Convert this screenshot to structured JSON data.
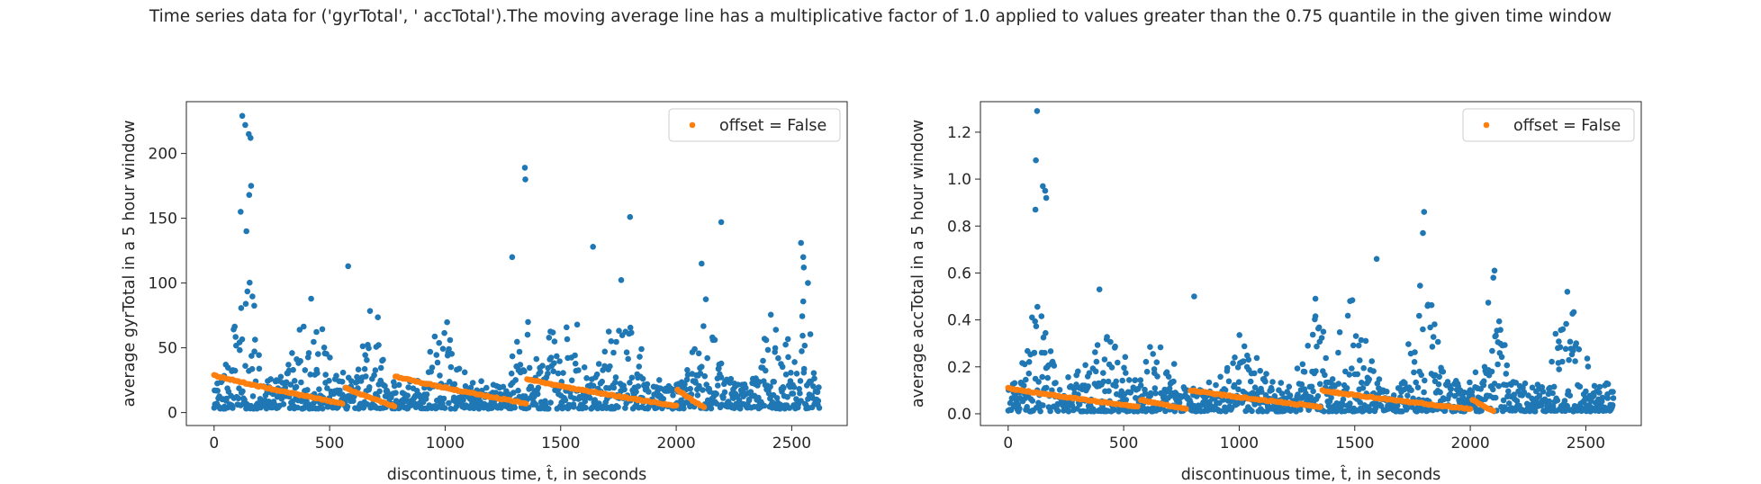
{
  "figure": {
    "suptitle": "Time series data for ('gyrTotal', ' accTotal').The moving average line has a multiplicative factor of 1.0 applied to values greater than the 0.75 quantile in the given time window"
  },
  "colors": {
    "raw_points": "#1f77b4",
    "moving_average": "#ff7f0e",
    "axes": "#262626",
    "background": "#ffffff"
  },
  "chart_data": [
    {
      "type": "scatter",
      "xlabel": "discontinuous time, t̂, in seconds",
      "ylabel": "average gyrTotal in a 5 hour window",
      "xlim": [
        -120,
        2740
      ],
      "ylim": [
        -10,
        240
      ],
      "xticks": [
        0,
        500,
        1000,
        1500,
        2000,
        2500
      ],
      "yticks": [
        0,
        50,
        100,
        150,
        200
      ],
      "legend": {
        "label": "offset = False",
        "placement": "upper right"
      },
      "grid": false,
      "series": [
        {
          "role": "raw",
          "x_range": [
            0,
            2620
          ],
          "n_points": 1150,
          "baseline": 3,
          "low_spread": 22,
          "bursts": [
            {
              "center": 130,
              "width": 70,
              "height": 95
            },
            {
              "center": 430,
              "width": 110,
              "height": 70
            },
            {
              "center": 680,
              "width": 60,
              "height": 70
            },
            {
              "center": 1000,
              "width": 90,
              "height": 50
            },
            {
              "center": 1340,
              "width": 60,
              "height": 70
            },
            {
              "center": 1500,
              "width": 100,
              "height": 75
            },
            {
              "center": 1760,
              "width": 90,
              "height": 80
            },
            {
              "center": 2130,
              "width": 60,
              "height": 80
            },
            {
              "center": 2430,
              "width": 80,
              "height": 60
            },
            {
              "center": 2560,
              "width": 40,
              "height": 75
            }
          ],
          "highlights": [
            {
              "x": 122,
              "y": 229
            },
            {
              "x": 135,
              "y": 222
            },
            {
              "x": 150,
              "y": 215
            },
            {
              "x": 158,
              "y": 212
            },
            {
              "x": 160,
              "y": 175
            },
            {
              "x": 152,
              "y": 168
            },
            {
              "x": 115,
              "y": 155
            },
            {
              "x": 140,
              "y": 140
            },
            {
              "x": 1345,
              "y": 189
            },
            {
              "x": 1347,
              "y": 180
            },
            {
              "x": 1800,
              "y": 151
            },
            {
              "x": 2195,
              "y": 147
            },
            {
              "x": 2540,
              "y": 131
            },
            {
              "x": 2550,
              "y": 120
            },
            {
              "x": 2552,
              "y": 112
            },
            {
              "x": 1290,
              "y": 120
            },
            {
              "x": 1640,
              "y": 128
            },
            {
              "x": 580,
              "y": 113
            },
            {
              "x": 2570,
              "y": 100
            },
            {
              "x": 2110,
              "y": 115
            }
          ]
        },
        {
          "role": "moving_average",
          "name": "offset = False",
          "segments": [
            {
              "x0": 0,
              "x1": 555,
              "y0": 29,
              "y1": 7
            },
            {
              "x0": 570,
              "x1": 780,
              "y0": 19,
              "y1": 5
            },
            {
              "x0": 785,
              "x1": 1350,
              "y0": 28,
              "y1": 7
            },
            {
              "x0": 1355,
              "x1": 2000,
              "y0": 26,
              "y1": 5
            },
            {
              "x0": 2005,
              "x1": 2120,
              "y0": 18,
              "y1": 4
            }
          ]
        }
      ]
    },
    {
      "type": "scatter",
      "xlabel": "discontinuous time, t̂, in seconds",
      "ylabel": "average  accTotal in a 5 hour window",
      "xlim": [
        -120,
        2740
      ],
      "ylim": [
        -0.05,
        1.33
      ],
      "xticks": [
        0,
        500,
        1000,
        1500,
        2000,
        2500
      ],
      "yticks": [
        0.0,
        0.2,
        0.4,
        0.6,
        0.8,
        1.0,
        1.2
      ],
      "legend": {
        "label": "offset = False",
        "placement": "upper right"
      },
      "grid": false,
      "series": [
        {
          "role": "raw",
          "x_range": [
            0,
            2620
          ],
          "n_points": 1150,
          "baseline": 0.01,
          "low_spread": 0.12,
          "bursts": [
            {
              "center": 130,
              "width": 60,
              "height": 0.5
            },
            {
              "center": 420,
              "width": 110,
              "height": 0.3
            },
            {
              "center": 650,
              "width": 70,
              "height": 0.3
            },
            {
              "center": 1000,
              "width": 100,
              "height": 0.25
            },
            {
              "center": 1330,
              "width": 60,
              "height": 0.4
            },
            {
              "center": 1500,
              "width": 100,
              "height": 0.4
            },
            {
              "center": 1800,
              "width": 80,
              "height": 0.5
            },
            {
              "center": 2100,
              "width": 60,
              "height": 0.45
            },
            {
              "center": 2430,
              "width": 80,
              "height": 0.4
            }
          ],
          "highlights": [
            {
              "x": 125,
              "y": 1.29
            },
            {
              "x": 120,
              "y": 1.08
            },
            {
              "x": 150,
              "y": 0.97
            },
            {
              "x": 160,
              "y": 0.95
            },
            {
              "x": 165,
              "y": 0.92
            },
            {
              "x": 118,
              "y": 0.87
            },
            {
              "x": 1800,
              "y": 0.86
            },
            {
              "x": 1795,
              "y": 0.77
            },
            {
              "x": 1595,
              "y": 0.66
            },
            {
              "x": 2105,
              "y": 0.61
            },
            {
              "x": 2100,
              "y": 0.58
            },
            {
              "x": 2420,
              "y": 0.52
            },
            {
              "x": 395,
              "y": 0.53
            },
            {
              "x": 1330,
              "y": 0.49
            },
            {
              "x": 805,
              "y": 0.5
            },
            {
              "x": 1480,
              "y": 0.48
            }
          ]
        },
        {
          "role": "moving_average",
          "name": "offset = False",
          "segments": [
            {
              "x0": 0,
              "x1": 560,
              "y0": 0.11,
              "y1": 0.03
            },
            {
              "x0": 575,
              "x1": 770,
              "y0": 0.06,
              "y1": 0.02
            },
            {
              "x0": 790,
              "x1": 1350,
              "y0": 0.1,
              "y1": 0.03
            },
            {
              "x0": 1360,
              "x1": 2000,
              "y0": 0.1,
              "y1": 0.02
            },
            {
              "x0": 2010,
              "x1": 2100,
              "y0": 0.06,
              "y1": 0.01
            }
          ]
        }
      ]
    }
  ]
}
